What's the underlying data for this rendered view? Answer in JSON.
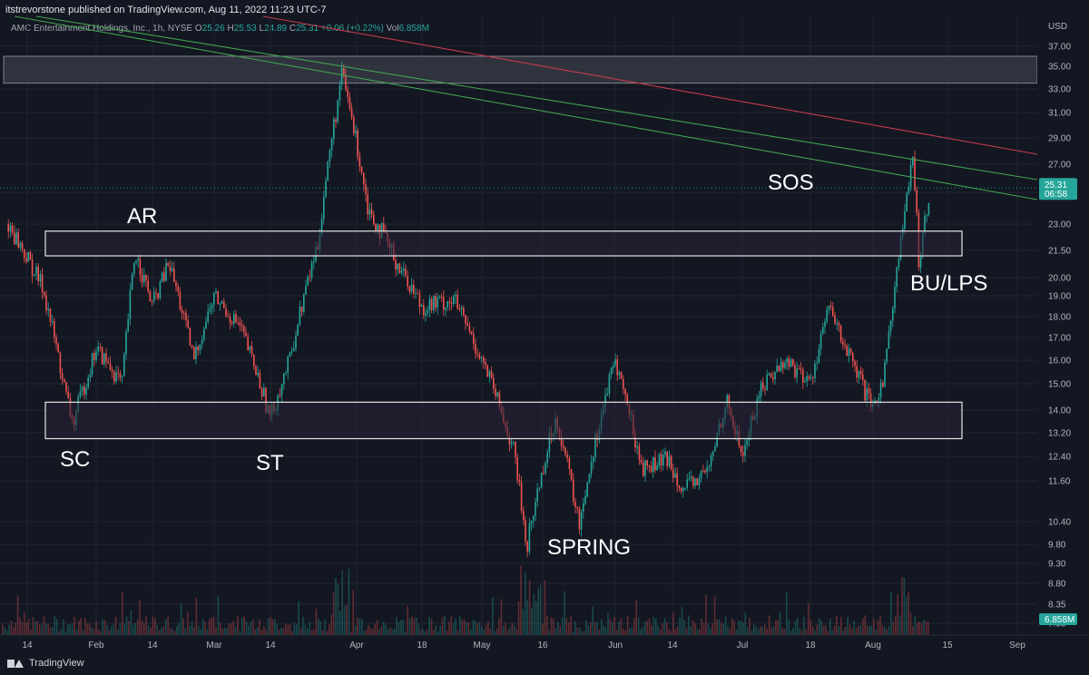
{
  "header": {
    "publisher_line": "itstrevorstone published on TradingView.com, Aug 11, 2022 11:23 UTC-7"
  },
  "legend": {
    "symbol": "AMC Entertainment Holdings, Inc., 1h, NYSE",
    "o_label": "O",
    "o_val": "25.26",
    "h_label": "H",
    "h_val": "25.53",
    "l_label": "L",
    "l_val": "24.89",
    "c_label": "C",
    "c_val": "25.31",
    "change": "+0.06 (+0.22%)",
    "vol_label": "Vol",
    "vol_val": "6.858M"
  },
  "footer": {
    "brand": "TradingView"
  },
  "colors": {
    "background": "#131722",
    "up": "#26a69a",
    "down": "#ef5350",
    "trend_green": "#3fa34d",
    "trend_red": "#c73b4b",
    "zone_fill": "#2a2236",
    "price_badge": "#26a69a"
  },
  "chart_data": {
    "type": "candlestick",
    "currency": "USD",
    "y_ticks": [
      "37.00",
      "35.00",
      "33.00",
      "31.00",
      "29.00",
      "27.00",
      "25.00",
      "23.00",
      "21.50",
      "20.00",
      "19.00",
      "18.00",
      "17.00",
      "16.00",
      "15.00",
      "14.00",
      "13.20",
      "12.40",
      "11.60",
      "10.40",
      "9.80",
      "9.30",
      "8.80",
      "8.35",
      "7.95"
    ],
    "x_ticks": [
      "14",
      "Feb",
      "14",
      "Mar",
      "14",
      "Apr",
      "18",
      "May",
      "16",
      "Jun",
      "14",
      "Jul",
      "18",
      "Aug",
      "15",
      "Sep"
    ],
    "last_price": "25.31",
    "countdown": "06:58",
    "volume_badge": "6.858M",
    "price_path": [
      [
        "Jan 10",
        23.0
      ],
      [
        "Jan 18",
        19.5
      ],
      [
        "Jan 24",
        14.6
      ],
      [
        "Jan 26",
        13.5
      ],
      [
        "Feb 1",
        16.5
      ],
      [
        "Feb 7",
        15.0
      ],
      [
        "Feb 10",
        21.4
      ],
      [
        "Feb 14",
        18.5
      ],
      [
        "Feb 18",
        20.8
      ],
      [
        "Feb 24",
        16.0
      ],
      [
        "Mar 1",
        19.0
      ],
      [
        "Mar 7",
        17.5
      ],
      [
        "Mar 14",
        13.7
      ],
      [
        "Mar 18",
        16.0
      ],
      [
        "Mar 24",
        22.0
      ],
      [
        "Mar 29",
        34.3
      ],
      [
        "Apr 4",
        24.0
      ],
      [
        "Apr 11",
        21.0
      ],
      [
        "Apr 18",
        18.5
      ],
      [
        "Apr 25",
        18.8
      ],
      [
        "May 2",
        15.6
      ],
      [
        "May 9",
        12.5
      ],
      [
        "May 12",
        9.7
      ],
      [
        "May 16",
        12.0
      ],
      [
        "May 19",
        13.8
      ],
      [
        "May 24",
        10.3
      ],
      [
        "May 27",
        12.5
      ],
      [
        "Jun 1",
        16.0
      ],
      [
        "Jun 7",
        12.0
      ],
      [
        "Jun 13",
        12.3
      ],
      [
        "Jun 17",
        11.3
      ],
      [
        "Jun 23",
        12.0
      ],
      [
        "Jun 27",
        14.4
      ],
      [
        "Jul 1",
        12.4
      ],
      [
        "Jul 6",
        15.0
      ],
      [
        "Jul 12",
        16.0
      ],
      [
        "Jul 18",
        15.0
      ],
      [
        "Jul 22",
        18.4
      ],
      [
        "Jul 27",
        16.0
      ],
      [
        "Aug 1",
        13.9
      ],
      [
        "Aug 3",
        15.5
      ],
      [
        "Aug 5",
        20.0
      ],
      [
        "Aug 8",
        27.3
      ],
      [
        "Aug 9",
        21.0
      ],
      [
        "Aug 11",
        25.31
      ]
    ],
    "zones": [
      {
        "name": "AR resistance range",
        "from": 21.2,
        "to": 22.6
      },
      {
        "name": "SC support range",
        "from": 13.0,
        "to": 14.3
      },
      {
        "name": "upper range",
        "from": 33.5,
        "to": 36.0
      }
    ],
    "annotations": [
      "AR",
      "SC",
      "ST",
      "SPRING",
      "SOS",
      "BU/LPS"
    ]
  }
}
